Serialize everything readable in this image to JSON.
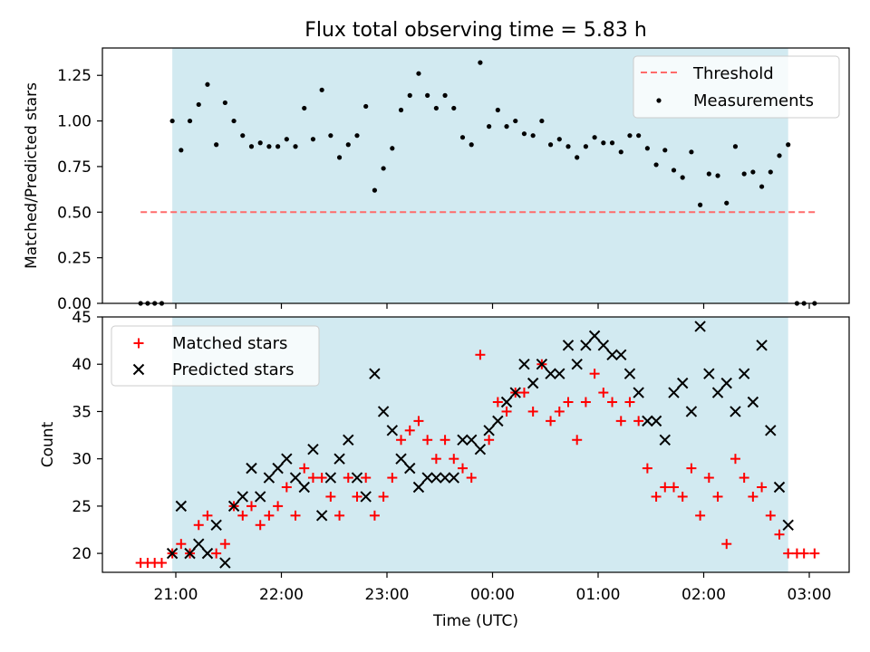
{
  "figure": {
    "title": "Flux total observing time = 5.83 h",
    "xlabel": "Time (UTC)",
    "xtick_labels": [
      "21:00",
      "22:00",
      "23:00",
      "00:00",
      "01:00",
      "02:00",
      "03:00"
    ],
    "shade_color": "#add8e6",
    "shade_range": [
      "20:58",
      "02:48"
    ]
  },
  "chart_data": [
    {
      "type": "scatter",
      "ylabel": "Matched/Predicted stars",
      "ylim": [
        0,
        1.4
      ],
      "yticks": [
        "0.00",
        "0.25",
        "0.50",
        "0.75",
        "1.00",
        "1.25"
      ],
      "grid": false,
      "legend_placement": "top-right",
      "threshold": {
        "name": "Threshold",
        "value": 0.5,
        "x_range": [
          "20:40",
          "03:05"
        ],
        "color": "#ff6b6b"
      },
      "series": [
        {
          "name": "Measurements",
          "color": "#000000",
          "points": [
            [
              "20:40",
              0.0
            ],
            [
              "20:44",
              0.0
            ],
            [
              "20:48",
              0.0
            ],
            [
              "20:52",
              0.0
            ],
            [
              "20:58",
              1.0
            ],
            [
              "21:03",
              0.84
            ],
            [
              "21:08",
              1.0
            ],
            [
              "21:13",
              1.09
            ],
            [
              "21:18",
              1.2
            ],
            [
              "21:23",
              0.87
            ],
            [
              "21:28",
              1.1
            ],
            [
              "21:33",
              1.0
            ],
            [
              "21:38",
              0.92
            ],
            [
              "21:43",
              0.86
            ],
            [
              "21:48",
              0.88
            ],
            [
              "21:53",
              0.86
            ],
            [
              "21:58",
              0.86
            ],
            [
              "22:03",
              0.9
            ],
            [
              "22:08",
              0.86
            ],
            [
              "22:13",
              1.07
            ],
            [
              "22:18",
              0.9
            ],
            [
              "22:23",
              1.17
            ],
            [
              "22:28",
              0.92
            ],
            [
              "22:33",
              0.8
            ],
            [
              "22:38",
              0.87
            ],
            [
              "22:43",
              0.92
            ],
            [
              "22:48",
              1.08
            ],
            [
              "22:53",
              0.62
            ],
            [
              "22:58",
              0.74
            ],
            [
              "23:03",
              0.85
            ],
            [
              "23:08",
              1.06
            ],
            [
              "23:13",
              1.14
            ],
            [
              "23:18",
              1.26
            ],
            [
              "23:23",
              1.14
            ],
            [
              "23:28",
              1.07
            ],
            [
              "23:33",
              1.14
            ],
            [
              "23:38",
              1.07
            ],
            [
              "23:43",
              0.91
            ],
            [
              "23:48",
              0.87
            ],
            [
              "23:53",
              1.32
            ],
            [
              "23:58",
              0.97
            ],
            [
              "00:03",
              1.06
            ],
            [
              "00:08",
              0.97
            ],
            [
              "00:13",
              1.0
            ],
            [
              "00:18",
              0.93
            ],
            [
              "00:23",
              0.92
            ],
            [
              "00:28",
              1.0
            ],
            [
              "00:33",
              0.87
            ],
            [
              "00:38",
              0.9
            ],
            [
              "00:43",
              0.86
            ],
            [
              "00:48",
              0.8
            ],
            [
              "00:53",
              0.86
            ],
            [
              "00:58",
              0.91
            ],
            [
              "01:03",
              0.88
            ],
            [
              "01:08",
              0.88
            ],
            [
              "01:13",
              0.83
            ],
            [
              "01:18",
              0.92
            ],
            [
              "01:23",
              0.92
            ],
            [
              "01:28",
              0.85
            ],
            [
              "01:33",
              0.76
            ],
            [
              "01:38",
              0.84
            ],
            [
              "01:43",
              0.73
            ],
            [
              "01:48",
              0.69
            ],
            [
              "01:53",
              0.83
            ],
            [
              "01:58",
              0.54
            ],
            [
              "02:03",
              0.71
            ],
            [
              "02:08",
              0.7
            ],
            [
              "02:13",
              0.55
            ],
            [
              "02:18",
              0.86
            ],
            [
              "02:23",
              0.71
            ],
            [
              "02:28",
              0.72
            ],
            [
              "02:33",
              0.64
            ],
            [
              "02:38",
              0.72
            ],
            [
              "02:43",
              0.81
            ],
            [
              "02:48",
              0.87
            ],
            [
              "02:53",
              0.0
            ],
            [
              "02:57",
              0.0
            ],
            [
              "03:03",
              0.0
            ]
          ]
        }
      ]
    },
    {
      "type": "scatter",
      "ylabel": "Count",
      "ylim": [
        18,
        45
      ],
      "yticks": [
        "20",
        "25",
        "30",
        "35",
        "40",
        "45"
      ],
      "grid": false,
      "legend_placement": "top-left",
      "series": [
        {
          "name": "Matched stars",
          "marker": "plus",
          "color": "#ff0000",
          "points": [
            [
              "20:40",
              19
            ],
            [
              "20:44",
              19
            ],
            [
              "20:48",
              19
            ],
            [
              "20:52",
              19
            ],
            [
              "20:58",
              20
            ],
            [
              "21:03",
              21
            ],
            [
              "21:08",
              20
            ],
            [
              "21:13",
              23
            ],
            [
              "21:18",
              24
            ],
            [
              "21:23",
              20
            ],
            [
              "21:28",
              21
            ],
            [
              "21:33",
              25
            ],
            [
              "21:38",
              24
            ],
            [
              "21:43",
              25
            ],
            [
              "21:48",
              23
            ],
            [
              "21:53",
              24
            ],
            [
              "21:58",
              25
            ],
            [
              "22:03",
              27
            ],
            [
              "22:08",
              24
            ],
            [
              "22:13",
              29
            ],
            [
              "22:18",
              28
            ],
            [
              "22:23",
              28
            ],
            [
              "22:28",
              26
            ],
            [
              "22:33",
              24
            ],
            [
              "22:38",
              28
            ],
            [
              "22:43",
              26
            ],
            [
              "22:48",
              28
            ],
            [
              "22:53",
              24
            ],
            [
              "22:58",
              26
            ],
            [
              "23:03",
              28
            ],
            [
              "23:08",
              32
            ],
            [
              "23:13",
              33
            ],
            [
              "23:18",
              34
            ],
            [
              "23:23",
              32
            ],
            [
              "23:28",
              30
            ],
            [
              "23:33",
              32
            ],
            [
              "23:38",
              30
            ],
            [
              "23:43",
              29
            ],
            [
              "23:48",
              28
            ],
            [
              "23:53",
              41
            ],
            [
              "23:58",
              32
            ],
            [
              "00:03",
              36
            ],
            [
              "00:08",
              35
            ],
            [
              "00:13",
              37
            ],
            [
              "00:18",
              37
            ],
            [
              "00:23",
              35
            ],
            [
              "00:28",
              40
            ],
            [
              "00:33",
              34
            ],
            [
              "00:38",
              35
            ],
            [
              "00:43",
              36
            ],
            [
              "00:48",
              32
            ],
            [
              "00:53",
              36
            ],
            [
              "00:58",
              39
            ],
            [
              "01:03",
              37
            ],
            [
              "01:08",
              36
            ],
            [
              "01:13",
              34
            ],
            [
              "01:18",
              36
            ],
            [
              "01:23",
              34
            ],
            [
              "01:28",
              29
            ],
            [
              "01:33",
              26
            ],
            [
              "01:38",
              27
            ],
            [
              "01:43",
              27
            ],
            [
              "01:48",
              26
            ],
            [
              "01:53",
              29
            ],
            [
              "01:58",
              24
            ],
            [
              "02:03",
              28
            ],
            [
              "02:08",
              26
            ],
            [
              "02:13",
              21
            ],
            [
              "02:18",
              30
            ],
            [
              "02:23",
              28
            ],
            [
              "02:28",
              26
            ],
            [
              "02:33",
              27
            ],
            [
              "02:38",
              24
            ],
            [
              "02:43",
              22
            ],
            [
              "02:48",
              20
            ],
            [
              "02:53",
              20
            ],
            [
              "02:57",
              20
            ],
            [
              "03:03",
              20
            ]
          ]
        },
        {
          "name": "Predicted stars",
          "marker": "x",
          "color": "#000000",
          "points": [
            [
              "20:58",
              20
            ],
            [
              "21:03",
              25
            ],
            [
              "21:08",
              20
            ],
            [
              "21:13",
              21
            ],
            [
              "21:18",
              20
            ],
            [
              "21:23",
              23
            ],
            [
              "21:28",
              19
            ],
            [
              "21:33",
              25
            ],
            [
              "21:38",
              26
            ],
            [
              "21:43",
              29
            ],
            [
              "21:48",
              26
            ],
            [
              "21:53",
              28
            ],
            [
              "21:58",
              29
            ],
            [
              "22:03",
              30
            ],
            [
              "22:08",
              28
            ],
            [
              "22:13",
              27
            ],
            [
              "22:18",
              31
            ],
            [
              "22:23",
              24
            ],
            [
              "22:28",
              28
            ],
            [
              "22:33",
              30
            ],
            [
              "22:38",
              32
            ],
            [
              "22:43",
              28
            ],
            [
              "22:48",
              26
            ],
            [
              "22:53",
              39
            ],
            [
              "22:58",
              35
            ],
            [
              "23:03",
              33
            ],
            [
              "23:08",
              30
            ],
            [
              "23:13",
              29
            ],
            [
              "23:18",
              27
            ],
            [
              "23:23",
              28
            ],
            [
              "23:28",
              28
            ],
            [
              "23:33",
              28
            ],
            [
              "23:38",
              28
            ],
            [
              "23:43",
              32
            ],
            [
              "23:48",
              32
            ],
            [
              "23:53",
              31
            ],
            [
              "23:58",
              33
            ],
            [
              "00:03",
              34
            ],
            [
              "00:08",
              36
            ],
            [
              "00:13",
              37
            ],
            [
              "00:18",
              40
            ],
            [
              "00:23",
              38
            ],
            [
              "00:28",
              40
            ],
            [
              "00:33",
              39
            ],
            [
              "00:38",
              39
            ],
            [
              "00:43",
              42
            ],
            [
              "00:48",
              40
            ],
            [
              "00:53",
              42
            ],
            [
              "00:58",
              43
            ],
            [
              "01:03",
              42
            ],
            [
              "01:08",
              41
            ],
            [
              "01:13",
              41
            ],
            [
              "01:18",
              39
            ],
            [
              "01:23",
              37
            ],
            [
              "01:28",
              34
            ],
            [
              "01:33",
              34
            ],
            [
              "01:38",
              32
            ],
            [
              "01:43",
              37
            ],
            [
              "01:48",
              38
            ],
            [
              "01:53",
              35
            ],
            [
              "01:58",
              44
            ],
            [
              "02:03",
              39
            ],
            [
              "02:08",
              37
            ],
            [
              "02:13",
              38
            ],
            [
              "02:18",
              35
            ],
            [
              "02:23",
              39
            ],
            [
              "02:28",
              36
            ],
            [
              "02:33",
              42
            ],
            [
              "02:38",
              33
            ],
            [
              "02:43",
              27
            ],
            [
              "02:48",
              23
            ]
          ]
        }
      ]
    }
  ]
}
